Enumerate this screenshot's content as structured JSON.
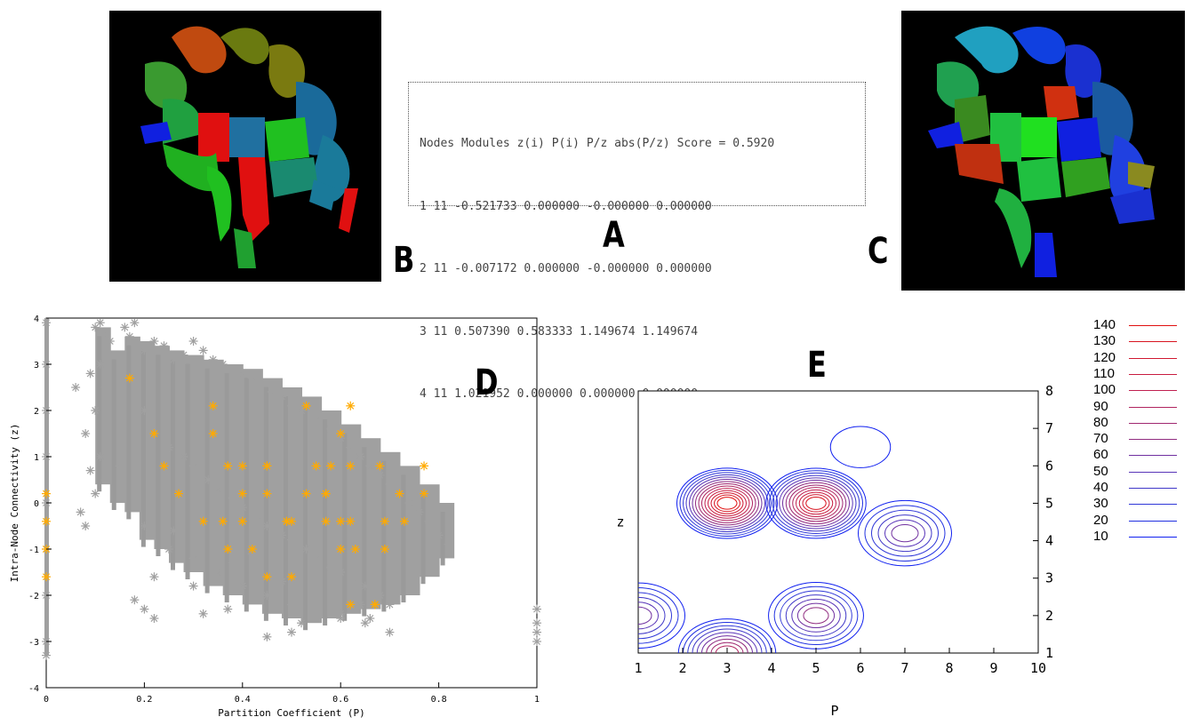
{
  "panel_letters": {
    "a": "A",
    "b": "B",
    "c": "C",
    "d": "D",
    "e": "E"
  },
  "table": {
    "rows": [
      "Nodes Modules z(i) P(i) P/z abs(P/z) Score = 0.5920",
      "1 11 -0.521733 0.000000 -0.000000 0.000000",
      "2 11 -0.007172 0.000000 -0.000000 0.000000",
      "3 11 0.507390 0.583333 1.149674 1.149674",
      "4 11 1.021952 0.000000 0.000000 0.000000"
    ]
  },
  "chart_data": [
    {
      "panel": "D",
      "type": "scatter",
      "xlabel": "Partition Coefficient (P)",
      "ylabel": "Intra-Node Connectivity (z)",
      "xlim": [
        0,
        1
      ],
      "ylim": [
        -4,
        4
      ],
      "xticks": [
        "0",
        "0.2",
        "0.4",
        "0.6",
        "0.8",
        "1"
      ],
      "yticks": [
        "-4",
        "-3",
        "-2",
        "-1",
        "0",
        "1",
        "2",
        "3",
        "4"
      ],
      "series": [
        {
          "color": "#a0a0a0",
          "marker": "asterisk",
          "x": [
            0.0,
            0.0,
            0.0,
            0.0,
            0.0,
            0.0,
            0.0,
            0.0,
            0.0,
            0.06,
            0.07,
            0.08,
            0.08,
            0.09,
            0.09,
            0.1,
            0.1,
            0.1,
            0.11,
            0.11,
            0.11,
            0.12,
            0.12,
            0.12,
            0.13,
            0.14,
            0.15,
            0.16,
            0.17,
            0.18,
            0.2,
            0.22,
            0.24,
            0.26,
            0.28,
            0.3,
            0.32,
            0.34,
            0.36,
            0.38,
            0.4,
            0.42,
            0.44,
            0.46,
            0.48,
            0.5,
            0.52,
            0.55,
            0.58,
            0.6,
            0.62,
            0.64,
            0.66,
            0.68,
            0.7,
            0.72,
            0.74,
            0.76,
            0.78,
            0.8,
            0.82,
            0.2,
            0.22,
            0.25,
            0.28,
            0.3,
            0.33,
            0.35,
            0.38,
            0.4,
            0.43,
            0.45,
            0.48,
            0.5,
            0.53,
            0.55,
            0.58,
            0.6,
            0.63,
            0.65,
            0.68,
            0.7,
            0.2,
            0.25,
            0.3,
            0.35,
            0.4,
            0.45,
            0.5,
            0.55,
            0.6,
            0.65,
            0.7,
            0.18,
            0.2,
            0.22,
            0.32,
            0.37,
            0.45,
            0.5,
            0.52,
            0.6,
            0.64,
            0.66,
            0.22,
            0.26,
            0.3,
            0.38,
            0.42,
            0.48,
            1.0,
            1.0,
            1.0,
            1.0
          ],
          "y": [
            3.9,
            3.0,
            2.0,
            1.0,
            0.0,
            -1.0,
            -2.0,
            -3.0,
            -3.3,
            2.5,
            -0.2,
            1.5,
            -0.5,
            2.8,
            0.7,
            3.8,
            2.0,
            0.2,
            3.9,
            3.0,
            1.0,
            3.7,
            2.5,
            0.5,
            3.5,
            3.2,
            0.8,
            3.8,
            3.6,
            3.9,
            3.3,
            3.5,
            3.4,
            3.1,
            3.2,
            3.5,
            3.3,
            3.1,
            3.0,
            2.9,
            2.8,
            2.7,
            2.6,
            2.4,
            2.3,
            2.1,
            2.0,
            1.8,
            1.6,
            1.4,
            1.2,
            1.0,
            0.8,
            0.6,
            0.4,
            0.2,
            0.0,
            -0.2,
            -0.4,
            -0.7,
            -0.9,
            2.0,
            1.5,
            1.2,
            1.0,
            0.8,
            0.5,
            0.3,
            0.1,
            -0.1,
            -0.3,
            -0.5,
            -0.7,
            -0.8,
            -1.0,
            -1.2,
            -1.4,
            -1.5,
            -1.7,
            -1.8,
            -2.0,
            -2.2,
            -0.5,
            -1.0,
            -1.2,
            -1.5,
            -1.8,
            -2.0,
            -2.2,
            -2.4,
            -2.5,
            -2.6,
            -2.8,
            -2.1,
            -2.3,
            -2.5,
            -2.4,
            -2.3,
            -2.9,
            -2.8,
            -2.6,
            -2.4,
            -2.2,
            -2.5,
            -1.6,
            -0.6,
            -1.8,
            -1.3,
            -1.1,
            -1.7,
            -2.3,
            -2.6,
            -2.8,
            -3.0
          ],
          "x_band_from": [
            0.1,
            0.13,
            0.16,
            0.19,
            0.22,
            0.25,
            0.28,
            0.32,
            0.36,
            0.4,
            0.44,
            0.48,
            0.52,
            0.56,
            0.6,
            0.64,
            0.68,
            0.72,
            0.76,
            0.8
          ],
          "y_band_top": [
            3.8,
            3.3,
            3.6,
            3.5,
            3.4,
            3.3,
            3.2,
            3.1,
            3.0,
            2.9,
            2.7,
            2.5,
            2.3,
            2.0,
            1.7,
            1.4,
            1.1,
            0.8,
            0.4,
            0.0
          ],
          "y_band_bottom": [
            0.4,
            0.0,
            -0.2,
            -0.8,
            -1.0,
            -1.3,
            -1.5,
            -1.8,
            -2.0,
            -2.2,
            -2.4,
            -2.5,
            -2.6,
            -2.5,
            -2.4,
            -2.3,
            -2.2,
            -2.0,
            -1.6,
            -1.2
          ]
        },
        {
          "color": "#ffaa00",
          "marker": "asterisk",
          "x": [
            0.0,
            0.0,
            0.0,
            0.0,
            0.17,
            0.22,
            0.24,
            0.27,
            0.32,
            0.34,
            0.34,
            0.37,
            0.37,
            0.4,
            0.4,
            0.4,
            0.42,
            0.45,
            0.45,
            0.45,
            0.49,
            0.49,
            0.5,
            0.53,
            0.53,
            0.55,
            0.57,
            0.57,
            0.57,
            0.58,
            0.6,
            0.6,
            0.6,
            0.62,
            0.62,
            0.62,
            0.63,
            0.67,
            0.68,
            0.69,
            0.69,
            0.72,
            0.73,
            0.77,
            0.77,
            0.36,
            0.45,
            0.5,
            0.62,
            0.67
          ],
          "y": [
            0.2,
            -0.4,
            -1.0,
            -1.6,
            2.7,
            1.5,
            0.8,
            0.2,
            -0.4,
            2.1,
            1.5,
            0.8,
            -1.0,
            0.8,
            0.2,
            -0.4,
            -1.0,
            0.8,
            0.2,
            -1.6,
            -0.4,
            -0.4,
            -1.6,
            0.2,
            2.1,
            0.8,
            0.2,
            -0.4,
            0.2,
            0.8,
            1.5,
            -1.0,
            -0.4,
            2.1,
            0.8,
            -0.4,
            -1.0,
            -2.2,
            0.8,
            -0.4,
            -1.0,
            0.2,
            -0.4,
            0.8,
            0.2,
            -0.4,
            0.8,
            -0.4,
            -2.2,
            -2.2
          ]
        }
      ]
    },
    {
      "panel": "E",
      "type": "contour",
      "xlabel": "P",
      "ylabel": "z",
      "xlim": [
        1,
        10
      ],
      "ylim": [
        1,
        8
      ],
      "xticks": [
        "1",
        "2",
        "3",
        "4",
        "5",
        "6",
        "7",
        "8",
        "9",
        "10"
      ],
      "yticks": [
        "1",
        "2",
        "3",
        "4",
        "5",
        "6",
        "7",
        "8"
      ],
      "levels": [
        "140",
        "130",
        "120",
        "110",
        "100",
        "90",
        "80",
        "70",
        "60",
        "50",
        "40",
        "30",
        "20",
        "10"
      ],
      "level_colors": [
        "#e01010",
        "#d81420",
        "#d01830",
        "#c81c40",
        "#c02050",
        "#b02460",
        "#a02870",
        "#902c80",
        "#7030a0",
        "#5834b8",
        "#4038c8",
        "#3038d8",
        "#2030e0",
        "#1020f0"
      ],
      "peaks": [
        {
          "p": 3.0,
          "z": 5.0,
          "max": 140
        },
        {
          "p": 5.0,
          "z": 5.0,
          "max": 130
        },
        {
          "p": 7.0,
          "z": 4.2,
          "max": 60
        },
        {
          "p": 3.0,
          "z": 1.0,
          "max": 90
        },
        {
          "p": 5.0,
          "z": 2.0,
          "max": 70
        },
        {
          "p": 1.0,
          "z": 2.0,
          "max": 60
        },
        {
          "p": 6.0,
          "z": 6.5,
          "max": 10
        }
      ]
    }
  ]
}
